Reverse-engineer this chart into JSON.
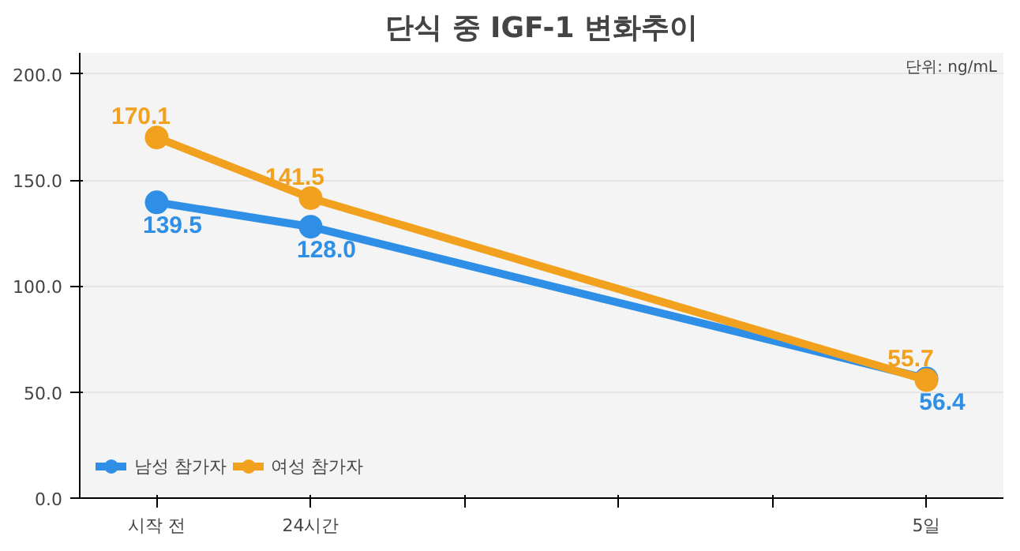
{
  "chart_data": {
    "type": "line",
    "title": "단식 중 IGF-1 변화추이",
    "annotations": [
      "단위: ng/mL"
    ],
    "categories": [
      "시작 전",
      "24시간",
      null,
      null,
      null,
      "5일"
    ],
    "series": [
      {
        "name": "남성 참가자",
        "color": "#2f8fe6",
        "values": [
          139.5,
          128.0,
          null,
          null,
          null,
          56.4
        ],
        "value_labels": [
          "139.5",
          "128.0",
          null,
          null,
          null,
          "56.4"
        ]
      },
      {
        "name": "여성 참가자",
        "color": "#f2a11f",
        "values": [
          170.1,
          141.5,
          null,
          null,
          null,
          55.7
        ],
        "value_labels": [
          "170.1",
          "141.5",
          null,
          null,
          null,
          "55.7"
        ]
      }
    ],
    "ylim": [
      0,
      210
    ],
    "yticks": [
      {
        "value": 0,
        "label": "0.0"
      },
      {
        "value": 50,
        "label": "50.0"
      },
      {
        "value": 100,
        "label": "100.0"
      },
      {
        "value": 150,
        "label": "150.0"
      },
      {
        "value": 200,
        "label": "200.0"
      }
    ],
    "grid": "y",
    "legend": "bottom left",
    "marker": "circle"
  }
}
